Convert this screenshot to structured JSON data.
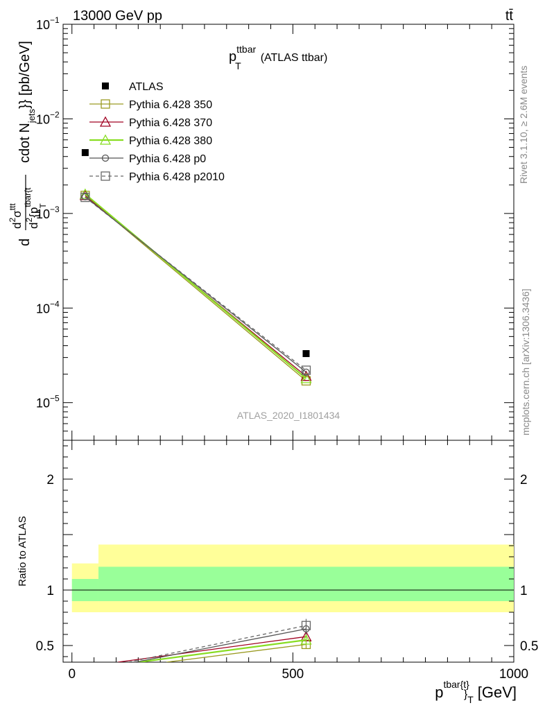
{
  "header": {
    "left": "13000 GeV pp",
    "right": "tt̄"
  },
  "side_labels": {
    "rivet": "Rivet 3.1.10, ≥ 2.6M events",
    "mcplots": "mcplots.cern.ch [arXiv:1306.3436]"
  },
  "chart_data": {
    "type": "line",
    "title": "p_T^ttbar (ATLAS ttbar)",
    "title_main": "p",
    "title_sup": "ttbar",
    "title_sub": "T",
    "title_rest": "(ATLAS ttbar)",
    "watermark": "ATLAS_2020_I1801434",
    "xlabel": "p^{tbar{t}}_T [GeV]",
    "xlabel_main": "p",
    "xlabel_sup": "tbar{t}",
    "xlabel_sub": "}",
    "xlabel_sub2": "T",
    "xlabel_unit": "[GeV]",
    "ylabel": "d^2σ^tt/d^2{p_T^tbar{t} cdot N_jets}} [pb/GeV]",
    "ylabel_parts": {
      "d1": "d",
      "num": "d",
      "num_sup": "2",
      "sigma": "σ",
      "sigma_sup": "ttt",
      "den": "d",
      "den_sup": "2",
      "brace": "{p",
      "brace_sup": "tbar{t",
      "brace_sub": "T",
      "rest": "cdot N",
      "rest_sub": "jets",
      "unit": "}} [pb/GeV]"
    },
    "xlim": [
      -20,
      1000
    ],
    "ylim": [
      4e-06,
      0.1
    ],
    "yscale": "log",
    "x_ticks": [
      0,
      500,
      1000
    ],
    "y_ticks": [
      {
        "base": "10",
        "exp": "−5",
        "value": 1e-05
      },
      {
        "base": "10",
        "exp": "−4",
        "value": 0.0001
      },
      {
        "base": "10",
        "exp": "−3",
        "value": 0.001
      },
      {
        "base": "10",
        "exp": "−2",
        "value": 0.01
      },
      {
        "base": "10",
        "exp": "−1",
        "value": 0.1
      }
    ],
    "data": {
      "name": "ATLAS",
      "x": [
        30,
        530
      ],
      "y": [
        0.0044,
        3.3e-05
      ],
      "color": "#000000"
    },
    "series": [
      {
        "name": "Pythia 6.428 350",
        "x": [
          30,
          530
        ],
        "y": [
          0.00155,
          1.7e-05
        ],
        "color": "#9a9a20",
        "marker": "square",
        "dashed": false,
        "width": 1.3
      },
      {
        "name": "Pythia 6.428 370",
        "x": [
          30,
          530
        ],
        "y": [
          0.00155,
          1.9e-05
        ],
        "color": "#a00020",
        "marker": "triangle",
        "dashed": false,
        "width": 1.3
      },
      {
        "name": "Pythia 6.428 380",
        "x": [
          30,
          530
        ],
        "y": [
          0.0016,
          1.8e-05
        ],
        "color": "#88dd22",
        "marker": "triangle",
        "dashed": false,
        "width": 2.2
      },
      {
        "name": "Pythia 6.428 p0",
        "x": [
          30,
          530
        ],
        "y": [
          0.0015,
          2.1e-05
        ],
        "color": "#555555",
        "marker": "circle",
        "dashed": false,
        "width": 1.3
      },
      {
        "name": "Pythia 6.428 p2010",
        "x": [
          30,
          530
        ],
        "y": [
          0.00148,
          2.2e-05
        ],
        "color": "#666666",
        "marker": "square",
        "dashed": true,
        "width": 1.3
      }
    ],
    "ratio": {
      "ylabel": "Ratio to ATLAS",
      "ylim": [
        0.35,
        2.35
      ],
      "y_ticks": [
        {
          "label": "0.5",
          "value": 0.5
        },
        {
          "label": "1",
          "value": 1
        },
        {
          "label": "2",
          "value": 2
        }
      ],
      "bands": [
        {
          "x": [
            0,
            60
          ],
          "inner": [
            0.9,
            1.1
          ],
          "outer": [
            0.8,
            1.24
          ]
        },
        {
          "x": [
            60,
            1000
          ],
          "inner": [
            0.9,
            1.21
          ],
          "outer": [
            0.8,
            1.41
          ]
        }
      ],
      "band_colors": {
        "inner": "#99ff99",
        "outer": "#ffff99"
      },
      "series": [
        {
          "name": "Pythia 6.428 350",
          "y": [
            0.35,
            0.51
          ],
          "err": 0.04
        },
        {
          "name": "Pythia 6.428 370",
          "y": [
            0.35,
            0.58
          ],
          "err": 0.04
        },
        {
          "name": "Pythia 6.428 380",
          "y": [
            0.35,
            0.55
          ],
          "err": 0.04
        },
        {
          "name": "Pythia 6.428 p0",
          "y": [
            0.35,
            0.65
          ],
          "err": 0.05
        },
        {
          "name": "Pythia 6.428 p2010",
          "y": [
            0.35,
            0.68
          ],
          "err": 0.06
        }
      ]
    }
  }
}
